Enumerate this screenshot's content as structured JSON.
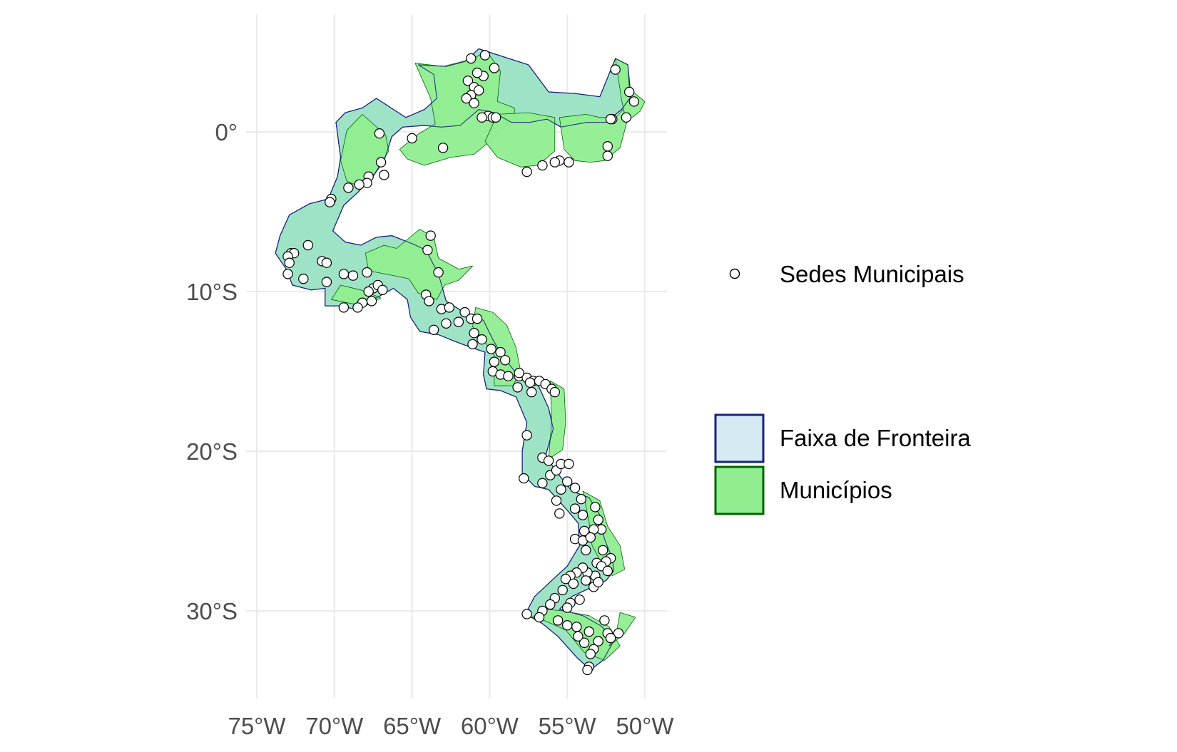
{
  "axes": {
    "x_ticks": [
      {
        "value": -75,
        "label": "75°W"
      },
      {
        "value": -70,
        "label": "70°W"
      },
      {
        "value": -65,
        "label": "65°W"
      },
      {
        "value": -60,
        "label": "60°W"
      },
      {
        "value": -55,
        "label": "55°W"
      },
      {
        "value": -50,
        "label": "50°W"
      }
    ],
    "y_ticks": [
      {
        "value": 0,
        "label": "0°"
      },
      {
        "value": -10,
        "label": "10°S"
      },
      {
        "value": -20,
        "label": "20°S"
      },
      {
        "value": -30,
        "label": "30°S"
      }
    ]
  },
  "legend": {
    "points_label": "Sedes Municipais",
    "faixa_label": "Faixa de Fronteira",
    "municipios_label": "Municípios"
  },
  "colors": {
    "faixa_fill": "#d6eaf3",
    "faixa_stroke": "#1a237e",
    "municipios_fill": "#90ee90",
    "municipios_stroke": "#006400",
    "grid": "#ebebeb",
    "point_fill": "#ffffff",
    "point_stroke": "#000000"
  },
  "map_data": {
    "x_range": [
      -75,
      -50
    ],
    "y_range": [
      -33.7,
      5
    ],
    "faixa_outline": [
      [
        -60.7,
        5.2
      ],
      [
        -57.5,
        4.2
      ],
      [
        -56.2,
        2.5
      ],
      [
        -54.5,
        2.4
      ],
      [
        -52.9,
        2.2
      ],
      [
        -51.9,
        4.6
      ],
      [
        -51.1,
        4.2
      ],
      [
        -50.9,
        2.2
      ],
      [
        -51.5,
        1.4
      ],
      [
        -52.0,
        1.0
      ],
      [
        -52.5,
        0.6
      ],
      [
        -52.9,
        0.6
      ],
      [
        -53.7,
        0.6
      ],
      [
        -54.3,
        0.5
      ],
      [
        -55.4,
        0.3
      ],
      [
        -56.3,
        0.8
      ],
      [
        -57.4,
        0.6
      ],
      [
        -58.6,
        0.6
      ],
      [
        -59.7,
        1.2
      ],
      [
        -60.7,
        1.4
      ],
      [
        -61.9,
        0.4
      ],
      [
        -63.1,
        0.3
      ],
      [
        -64.2,
        0.4
      ],
      [
        -65.6,
        0.3
      ],
      [
        -66.3,
        -0.3
      ],
      [
        -66.8,
        -1.8
      ],
      [
        -67.6,
        -2.9
      ],
      [
        -68.5,
        -3.8
      ],
      [
        -69.4,
        -4.6
      ],
      [
        -70.1,
        -6.2
      ],
      [
        -69.3,
        -6.9
      ],
      [
        -68.3,
        -7.1
      ],
      [
        -67.3,
        -6.6
      ],
      [
        -66.3,
        -6.5
      ],
      [
        -65.0,
        -7.0
      ],
      [
        -64.1,
        -7.4
      ],
      [
        -63.3,
        -8.9
      ],
      [
        -62.8,
        -10.6
      ],
      [
        -61.5,
        -11.4
      ],
      [
        -60.4,
        -11.8
      ],
      [
        -59.8,
        -13.0
      ],
      [
        -59.2,
        -14.0
      ],
      [
        -58.3,
        -15.1
      ],
      [
        -57.0,
        -15.6
      ],
      [
        -56.2,
        -17.3
      ],
      [
        -55.9,
        -18.6
      ],
      [
        -56.4,
        -20.3
      ],
      [
        -55.6,
        -21.4
      ],
      [
        -54.7,
        -22.5
      ],
      [
        -53.6,
        -22.9
      ],
      [
        -52.9,
        -24.0
      ],
      [
        -52.6,
        -25.5
      ],
      [
        -52.1,
        -26.7
      ],
      [
        -52.0,
        -27.5
      ],
      [
        -52.5,
        -28.1
      ],
      [
        -53.6,
        -28.6
      ],
      [
        -54.7,
        -29.1
      ],
      [
        -55.5,
        -29.9
      ],
      [
        -54.0,
        -30.3
      ],
      [
        -52.9,
        -30.9
      ],
      [
        -51.9,
        -31.7
      ],
      [
        -52.7,
        -33.1
      ],
      [
        -53.5,
        -33.7
      ],
      [
        -54.4,
        -32.9
      ],
      [
        -55.6,
        -31.6
      ],
      [
        -56.6,
        -30.8
      ],
      [
        -57.7,
        -30.2
      ],
      [
        -57.1,
        -29.1
      ],
      [
        -56.0,
        -28.1
      ],
      [
        -55.0,
        -27.2
      ],
      [
        -54.2,
        -25.9
      ],
      [
        -54.3,
        -24.5
      ],
      [
        -55.0,
        -23.7
      ],
      [
        -56.2,
        -22.4
      ],
      [
        -57.1,
        -22.2
      ],
      [
        -57.9,
        -21.4
      ],
      [
        -57.9,
        -20.0
      ],
      [
        -57.6,
        -18.2
      ],
      [
        -58.3,
        -16.6
      ],
      [
        -59.3,
        -16.2
      ],
      [
        -60.2,
        -16.1
      ],
      [
        -60.4,
        -15.2
      ],
      [
        -60.3,
        -13.8
      ],
      [
        -61.2,
        -13.5
      ],
      [
        -62.3,
        -13.1
      ],
      [
        -63.3,
        -12.7
      ],
      [
        -64.5,
        -12.5
      ],
      [
        -65.1,
        -11.6
      ],
      [
        -65.3,
        -10.5
      ],
      [
        -66.2,
        -9.8
      ],
      [
        -67.3,
        -10.4
      ],
      [
        -68.7,
        -11.1
      ],
      [
        -69.6,
        -10.9
      ],
      [
        -70.6,
        -10.9
      ],
      [
        -70.6,
        -9.8
      ],
      [
        -71.5,
        -9.9
      ],
      [
        -72.7,
        -9.6
      ],
      [
        -73.1,
        -8.6
      ],
      [
        -73.8,
        -7.6
      ],
      [
        -73.5,
        -6.5
      ],
      [
        -72.9,
        -5.2
      ],
      [
        -71.6,
        -4.5
      ],
      [
        -70.4,
        -4.2
      ],
      [
        -69.8,
        -2.8
      ],
      [
        -69.6,
        -1.6
      ],
      [
        -69.9,
        0.6
      ],
      [
        -69.3,
        1.2
      ],
      [
        -68.2,
        1.5
      ],
      [
        -67.3,
        2.1
      ],
      [
        -65.4,
        0.9
      ],
      [
        -64.2,
        1.4
      ],
      [
        -63.4,
        2.1
      ],
      [
        -63.6,
        3.6
      ],
      [
        -64.6,
        4.2
      ],
      [
        -62.8,
        4.1
      ],
      [
        -61.6,
        4.4
      ]
    ],
    "municipios_fill": [
      [
        [
          -64.8,
          4.3
        ],
        [
          -63.0,
          4.1
        ],
        [
          -61.0,
          4.6
        ],
        [
          -60.2,
          5.1
        ],
        [
          -59.3,
          3.8
        ],
        [
          -59.5,
          1.9
        ],
        [
          -58.4,
          1.5
        ],
        [
          -58.4,
          0.8
        ],
        [
          -59.0,
          0.3
        ],
        [
          -60.0,
          -0.6
        ],
        [
          -61.0,
          -1.4
        ],
        [
          -62.5,
          -1.6
        ],
        [
          -64.2,
          -2.1
        ],
        [
          -65.3,
          -1.7
        ],
        [
          -65.8,
          -1.1
        ],
        [
          -64.7,
          -0.2
        ],
        [
          -63.5,
          0.5
        ],
        [
          -63.8,
          2.1
        ]
      ],
      [
        [
          -59.5,
          1.1
        ],
        [
          -57.5,
          1.2
        ],
        [
          -55.8,
          0.9
        ],
        [
          -55.8,
          -1.2
        ],
        [
          -56.9,
          -2.1
        ],
        [
          -58.0,
          -2.2
        ],
        [
          -59.5,
          -1.6
        ],
        [
          -60.3,
          -0.6
        ]
      ],
      [
        [
          -55.5,
          0.9
        ],
        [
          -53.8,
          1.1
        ],
        [
          -52.9,
          0.9
        ],
        [
          -51.9,
          0.9
        ],
        [
          -51.4,
          1.4
        ],
        [
          -51.0,
          1.2
        ],
        [
          -51.6,
          -1.0
        ],
        [
          -52.6,
          -1.8
        ],
        [
          -53.5,
          -1.9
        ],
        [
          -54.5,
          -1.8
        ],
        [
          -55.2,
          -1.1
        ]
      ],
      [
        [
          -51.9,
          4.6
        ],
        [
          -51.1,
          4.2
        ],
        [
          -51.0,
          2.7
        ],
        [
          -50.0,
          1.9
        ],
        [
          -50.3,
          1.3
        ],
        [
          -51.2,
          0.6
        ],
        [
          -51.5,
          2.0
        ]
      ],
      [
        [
          -68.2,
          1.1
        ],
        [
          -66.7,
          -0.2
        ],
        [
          -66.5,
          -1.2
        ],
        [
          -67.4,
          -2.6
        ],
        [
          -68.4,
          -3.4
        ],
        [
          -69.2,
          -3.1
        ],
        [
          -69.6,
          -1.8
        ],
        [
          -69.2,
          0.1
        ]
      ],
      [
        [
          -66.0,
          -7.3
        ],
        [
          -64.5,
          -6.1
        ],
        [
          -63.6,
          -6.6
        ],
        [
          -63.3,
          -7.9
        ],
        [
          -62.0,
          -8.6
        ],
        [
          -61.1,
          -8.4
        ],
        [
          -62.0,
          -9.3
        ],
        [
          -62.9,
          -9.6
        ],
        [
          -63.4,
          -10.5
        ],
        [
          -64.6,
          -10.1
        ],
        [
          -65.2,
          -9.2
        ],
        [
          -66.2,
          -9.0
        ],
        [
          -67.8,
          -8.7
        ],
        [
          -68.0,
          -7.6
        ],
        [
          -66.8,
          -7.1
        ]
      ],
      [
        [
          -60.9,
          -11.0
        ],
        [
          -59.8,
          -11.3
        ],
        [
          -58.9,
          -12.1
        ],
        [
          -58.3,
          -13.5
        ],
        [
          -58.0,
          -15.0
        ],
        [
          -58.5,
          -15.9
        ],
        [
          -59.7,
          -15.9
        ],
        [
          -59.7,
          -14.0
        ],
        [
          -60.4,
          -13.0
        ],
        [
          -61.1,
          -12.2
        ]
      ],
      [
        [
          -56.1,
          -15.6
        ],
        [
          -55.2,
          -16.1
        ],
        [
          -55.1,
          -18.2
        ],
        [
          -55.3,
          -19.9
        ],
        [
          -56.2,
          -20.5
        ],
        [
          -56.0,
          -18.1
        ]
      ],
      [
        [
          -54.0,
          -22.5
        ],
        [
          -52.9,
          -23.1
        ],
        [
          -52.4,
          -24.7
        ],
        [
          -51.6,
          -25.9
        ],
        [
          -51.3,
          -27.4
        ],
        [
          -52.1,
          -27.8
        ],
        [
          -52.8,
          -27.0
        ],
        [
          -53.4,
          -25.9
        ],
        [
          -53.6,
          -24.4
        ]
      ],
      [
        [
          -55.3,
          -30.0
        ],
        [
          -53.6,
          -30.3
        ],
        [
          -52.3,
          -31.0
        ],
        [
          -51.6,
          -32.2
        ],
        [
          -52.6,
          -33.1
        ],
        [
          -53.9,
          -32.6
        ],
        [
          -55.1,
          -31.2
        ],
        [
          -56.5,
          -30.6
        ],
        [
          -57.3,
          -30.4
        ],
        [
          -56.3,
          -29.9
        ]
      ],
      [
        [
          -51.6,
          -30.1
        ],
        [
          -50.6,
          -30.4
        ],
        [
          -51.3,
          -31.4
        ],
        [
          -52.3,
          -32.2
        ],
        [
          -51.8,
          -31.2
        ]
      ],
      [
        [
          -70.2,
          -10.5
        ],
        [
          -69.2,
          -10.7
        ],
        [
          -68.0,
          -10.9
        ],
        [
          -67.0,
          -10.4
        ],
        [
          -68.3,
          -9.9
        ],
        [
          -69.6,
          -9.6
        ]
      ]
    ],
    "sedes": [
      [
        -60.3,
        4.8
      ],
      [
        -61.2,
        4.6
      ],
      [
        -59.7,
        4.0
      ],
      [
        -60.4,
        3.5
      ],
      [
        -60.8,
        3.7
      ],
      [
        -61.4,
        3.2
      ],
      [
        -61.0,
        2.8
      ],
      [
        -61.2,
        2.3
      ],
      [
        -60.7,
        2.6
      ],
      [
        -61.5,
        2.1
      ],
      [
        -61.0,
        1.8
      ],
      [
        -60.1,
        1.0
      ],
      [
        -59.8,
        0.9
      ],
      [
        -59.6,
        0.9
      ],
      [
        -60.5,
        0.9
      ],
      [
        -51.9,
        3.9
      ],
      [
        -51.0,
        2.5
      ],
      [
        -50.7,
        1.9
      ],
      [
        -51.2,
        0.9
      ],
      [
        -52.1,
        0.8
      ],
      [
        -52.4,
        -0.9
      ],
      [
        -52.4,
        -1.5
      ],
      [
        -52.2,
        0.8
      ],
      [
        -54.9,
        -1.9
      ],
      [
        -55.5,
        -1.8
      ],
      [
        -55.8,
        -1.9
      ],
      [
        -56.6,
        -2.1
      ],
      [
        -57.6,
        -2.5
      ],
      [
        -63.0,
        -1.0
      ],
      [
        -65.0,
        -0.4
      ],
      [
        -67.1,
        -0.1
      ],
      [
        -67.0,
        -1.9
      ],
      [
        -66.8,
        -2.7
      ],
      [
        -67.8,
        -2.8
      ],
      [
        -67.9,
        -3.2
      ],
      [
        -68.4,
        -3.3
      ],
      [
        -69.1,
        -3.5
      ],
      [
        -70.2,
        -4.2
      ],
      [
        -70.3,
        -4.4
      ],
      [
        -71.7,
        -7.1
      ],
      [
        -72.8,
        -7.6
      ],
      [
        -72.6,
        -7.6
      ],
      [
        -73.0,
        -7.8
      ],
      [
        -72.9,
        -8.2
      ],
      [
        -73.0,
        -8.9
      ],
      [
        -72.0,
        -9.2
      ],
      [
        -70.8,
        -8.1
      ],
      [
        -70.5,
        -8.2
      ],
      [
        -69.4,
        -8.9
      ],
      [
        -68.8,
        -9.0
      ],
      [
        -67.9,
        -8.8
      ],
      [
        -67.5,
        -9.8
      ],
      [
        -67.8,
        -10.0
      ],
      [
        -67.2,
        -9.6
      ],
      [
        -66.9,
        -9.9
      ],
      [
        -67.6,
        -10.6
      ],
      [
        -68.2,
        -10.7
      ],
      [
        -68.5,
        -11.0
      ],
      [
        -69.4,
        -11.0
      ],
      [
        -70.5,
        -9.4
      ],
      [
        -64.0,
        -7.4
      ],
      [
        -63.8,
        -6.5
      ],
      [
        -63.3,
        -8.8
      ],
      [
        -64.1,
        -10.2
      ],
      [
        -63.9,
        -10.6
      ],
      [
        -63.1,
        -11.1
      ],
      [
        -62.6,
        -11.0
      ],
      [
        -63.6,
        -12.4
      ],
      [
        -62.8,
        -12.0
      ],
      [
        -62.0,
        -11.9
      ],
      [
        -61.6,
        -11.3
      ],
      [
        -61.2,
        -11.7
      ],
      [
        -60.8,
        -11.7
      ],
      [
        -61.0,
        -12.6
      ],
      [
        -61.1,
        -13.3
      ],
      [
        -60.5,
        -13.0
      ],
      [
        -59.9,
        -13.6
      ],
      [
        -59.7,
        -14.4
      ],
      [
        -59.3,
        -13.8
      ],
      [
        -59.0,
        -14.3
      ],
      [
        -59.8,
        -15.0
      ],
      [
        -59.3,
        -15.2
      ],
      [
        -58.8,
        -15.3
      ],
      [
        -58.1,
        -15.3
      ],
      [
        -57.6,
        -15.4
      ],
      [
        -57.2,
        -15.6
      ],
      [
        -57.4,
        -15.7
      ],
      [
        -58.2,
        -16.0
      ],
      [
        -58.1,
        -15.1
      ],
      [
        -56.8,
        -15.6
      ],
      [
        -56.4,
        -15.8
      ],
      [
        -56.0,
        -16.1
      ],
      [
        -55.8,
        -16.3
      ],
      [
        -57.3,
        -16.3
      ],
      [
        -57.6,
        -19.0
      ],
      [
        -56.6,
        -20.4
      ],
      [
        -56.2,
        -20.6
      ],
      [
        -57.8,
        -21.7
      ],
      [
        -56.6,
        -22.0
      ],
      [
        -56.1,
        -21.5
      ],
      [
        -55.7,
        -21.2
      ],
      [
        -55.4,
        -20.8
      ],
      [
        -54.9,
        -20.8
      ],
      [
        -55.0,
        -21.9
      ],
      [
        -54.5,
        -22.3
      ],
      [
        -55.4,
        -22.4
      ],
      [
        -55.7,
        -23.1
      ],
      [
        -55.5,
        -23.9
      ],
      [
        -54.5,
        -23.6
      ],
      [
        -54.1,
        -23.0
      ],
      [
        -54.0,
        -24.0
      ],
      [
        -53.2,
        -23.5
      ],
      [
        -53.0,
        -24.3
      ],
      [
        -52.8,
        -24.9
      ],
      [
        -53.3,
        -24.9
      ],
      [
        -53.9,
        -25.0
      ],
      [
        -54.5,
        -25.5
      ],
      [
        -54.0,
        -25.6
      ],
      [
        -53.5,
        -25.4
      ],
      [
        -53.8,
        -26.2
      ],
      [
        -52.7,
        -26.2
      ],
      [
        -52.2,
        -26.7
      ],
      [
        -52.5,
        -26.9
      ],
      [
        -53.1,
        -27.0
      ],
      [
        -52.8,
        -27.2
      ],
      [
        -52.4,
        -27.5
      ],
      [
        -53.2,
        -27.8
      ],
      [
        -53.7,
        -27.6
      ],
      [
        -54.0,
        -27.3
      ],
      [
        -54.4,
        -27.6
      ],
      [
        -54.8,
        -27.8
      ],
      [
        -55.1,
        -28.0
      ],
      [
        -55.3,
        -28.7
      ],
      [
        -54.6,
        -28.3
      ],
      [
        -53.8,
        -28.1
      ],
      [
        -53.3,
        -28.5
      ],
      [
        -53.0,
        -28.2
      ],
      [
        -54.2,
        -29.3
      ],
      [
        -54.8,
        -29.5
      ],
      [
        -55.0,
        -29.8
      ],
      [
        -55.8,
        -29.2
      ],
      [
        -56.1,
        -29.6
      ],
      [
        -56.6,
        -30.0
      ],
      [
        -57.6,
        -30.2
      ],
      [
        -56.8,
        -30.4
      ],
      [
        -55.6,
        -30.6
      ],
      [
        -55.0,
        -30.9
      ],
      [
        -54.4,
        -31.0
      ],
      [
        -53.6,
        -31.3
      ],
      [
        -52.6,
        -30.6
      ],
      [
        -52.4,
        -31.4
      ],
      [
        -51.7,
        -31.4
      ],
      [
        -52.2,
        -31.7
      ],
      [
        -53.0,
        -31.9
      ],
      [
        -53.3,
        -32.4
      ],
      [
        -53.9,
        -32.0
      ],
      [
        -53.5,
        -32.7
      ],
      [
        -53.6,
        -33.5
      ],
      [
        -53.7,
        -33.7
      ],
      [
        -54.3,
        -31.6
      ]
    ]
  }
}
